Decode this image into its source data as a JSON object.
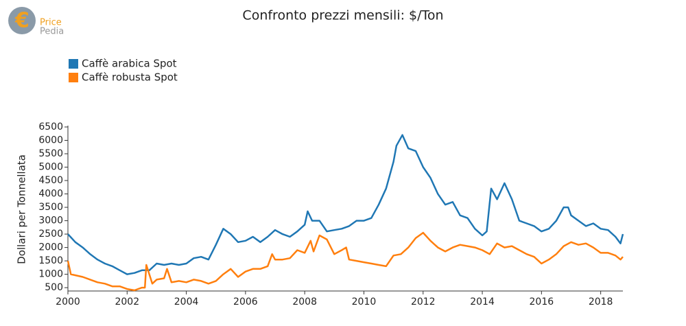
{
  "logo": {
    "line1": "Price",
    "line2": "Pedia"
  },
  "chart_data": {
    "type": "line",
    "title": "Confronto prezzi mensili: $/Ton",
    "y_label": "Dollari per Tonnellata",
    "xlim": [
      2000,
      2018.75
    ],
    "xticks": [
      2000,
      2002,
      2004,
      2006,
      2008,
      2010,
      2012,
      2014,
      2016,
      2018
    ],
    "ylim": [
      375,
      6500
    ],
    "yticks": [
      500,
      1000,
      1500,
      2000,
      2500,
      3000,
      3500,
      4000,
      4500,
      5000,
      5500,
      6000,
      6500
    ],
    "grid": false,
    "legend": "top-left",
    "series": [
      {
        "name": "Caffè arabica Spot",
        "color": "#1f77b4",
        "x": [
          2000,
          2000.25,
          2000.5,
          2000.75,
          2001,
          2001.25,
          2001.5,
          2001.75,
          2002,
          2002.25,
          2002.5,
          2002.75,
          2003,
          2003.25,
          2003.5,
          2003.75,
          2004,
          2004.25,
          2004.5,
          2004.75,
          2005,
          2005.25,
          2005.5,
          2005.75,
          2006,
          2006.25,
          2006.5,
          2006.75,
          2007,
          2007.25,
          2007.5,
          2007.75,
          2008,
          2008.1,
          2008.25,
          2008.5,
          2008.75,
          2009,
          2009.25,
          2009.5,
          2009.75,
          2010,
          2010.25,
          2010.5,
          2010.75,
          2011,
          2011.1,
          2011.3,
          2011.5,
          2011.75,
          2012,
          2012.25,
          2012.5,
          2012.75,
          2013,
          2013.25,
          2013.5,
          2013.75,
          2014,
          2014.15,
          2014.3,
          2014.5,
          2014.75,
          2015,
          2015.25,
          2015.5,
          2015.75,
          2016,
          2016.25,
          2016.5,
          2016.75,
          2016.9,
          2017,
          2017.25,
          2017.5,
          2017.75,
          2018,
          2018.25,
          2018.5,
          2018.67,
          2018.75
        ],
        "values": [
          2500,
          2200,
          2000,
          1750,
          1550,
          1400,
          1300,
          1150,
          1000,
          1050,
          1150,
          1150,
          1400,
          1350,
          1400,
          1350,
          1400,
          1600,
          1650,
          1550,
          2100,
          2700,
          2500,
          2200,
          2250,
          2400,
          2200,
          2400,
          2650,
          2500,
          2400,
          2600,
          2850,
          3350,
          3000,
          3000,
          2600,
          2650,
          2700,
          2800,
          3000,
          3000,
          3100,
          3600,
          4200,
          5200,
          5800,
          6200,
          5700,
          5600,
          5000,
          4600,
          4000,
          3600,
          3700,
          3200,
          3100,
          2700,
          2450,
          2600,
          4200,
          3800,
          4400,
          3800,
          3000,
          2900,
          2800,
          2600,
          2700,
          3000,
          3500,
          3500,
          3200,
          3000,
          2800,
          2900,
          2700,
          2650,
          2400,
          2150,
          2500
        ]
      },
      {
        "name": "Caffè robusta Spot",
        "color": "#ff7f0e",
        "x": [
          2000,
          2000.1,
          2000.5,
          2000.75,
          2001,
          2001.25,
          2001.5,
          2001.75,
          2002,
          2002.25,
          2002.5,
          2002.6,
          2002.65,
          2002.85,
          2003,
          2003.25,
          2003.35,
          2003.5,
          2003.75,
          2004,
          2004.25,
          2004.5,
          2004.75,
          2005,
          2005.25,
          2005.5,
          2005.75,
          2006,
          2006.25,
          2006.5,
          2006.75,
          2006.9,
          2007,
          2007.25,
          2007.5,
          2007.75,
          2008,
          2008.2,
          2008.3,
          2008.5,
          2008.75,
          2009,
          2009.25,
          2009.4,
          2009.5,
          2009.75,
          2010,
          2010.25,
          2010.5,
          2010.75,
          2011,
          2011.25,
          2011.5,
          2011.75,
          2012,
          2012.25,
          2012.5,
          2012.75,
          2013,
          2013.25,
          2013.5,
          2013.75,
          2014,
          2014.25,
          2014.5,
          2014.75,
          2015,
          2015.25,
          2015.5,
          2015.75,
          2016,
          2016.25,
          2016.5,
          2016.75,
          2017,
          2017.25,
          2017.5,
          2017.75,
          2018,
          2018.25,
          2018.5,
          2018.67,
          2018.75
        ],
        "values": [
          1500,
          1000,
          900,
          800,
          700,
          650,
          550,
          550,
          450,
          400,
          500,
          500,
          1350,
          650,
          800,
          850,
          1200,
          700,
          750,
          700,
          800,
          750,
          650,
          750,
          1000,
          1200,
          900,
          1100,
          1200,
          1200,
          1300,
          1750,
          1550,
          1550,
          1600,
          1900,
          1800,
          2250,
          1850,
          2450,
          2300,
          1750,
          1900,
          2000,
          1550,
          1500,
          1450,
          1400,
          1350,
          1300,
          1700,
          1750,
          2000,
          2350,
          2550,
          2250,
          2000,
          1850,
          2000,
          2100,
          2050,
          2000,
          1900,
          1750,
          2150,
          2000,
          2050,
          1900,
          1750,
          1650,
          1400,
          1550,
          1750,
          2050,
          2200,
          2100,
          2150,
          2000,
          1800,
          1800,
          1700,
          1550,
          1650
        ]
      }
    ]
  }
}
